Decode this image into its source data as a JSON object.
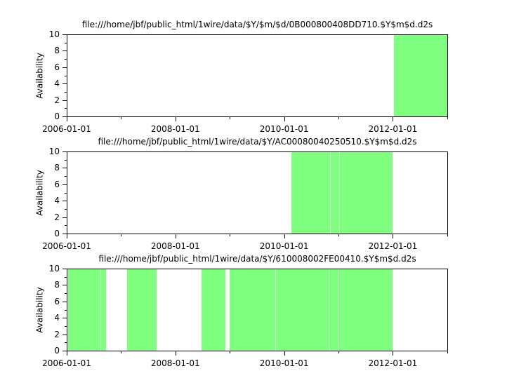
{
  "page": {
    "background": "#ffffff",
    "text_color": "#000000"
  },
  "colors": {
    "fill": "#80ff80",
    "pale_streak": "#d6ffd6",
    "axis": "#000000"
  },
  "chart_data": [
    {
      "type": "area",
      "title": "file:///home/jbf/public_html/1wire/data/$Y/$m/$d/0B000800408DD710.$Y$m$d.d2s",
      "xlabel": "",
      "ylabel": "Availability",
      "ylim": [
        0,
        10
      ],
      "x_range": [
        "2006-01-01",
        "2013-01-01"
      ],
      "y_ticks": [
        0,
        2,
        4,
        6,
        8,
        10
      ],
      "y_minor_ticks": [
        1,
        3,
        5,
        7,
        9
      ],
      "x_major_ticks": [
        "2006-01-01",
        "2008-01-01",
        "2010-01-01",
        "2012-01-01"
      ],
      "x_tick_labels": [
        "2006-01-01",
        "2008-01-01",
        "2010-01-01",
        "2012-01-01"
      ],
      "x_minor_ticks": [
        "2007-01-01",
        "2009-01-01",
        "2011-01-01",
        "2013-01-01"
      ],
      "grid": false,
      "legend": "none",
      "series": [
        {
          "name": "availability",
          "value_when_present": 10,
          "intervals": [
            {
              "start": "2012-01-08",
              "end": "2013-01-01"
            }
          ]
        }
      ],
      "pale_streaks": []
    },
    {
      "type": "area",
      "title": "file:///home/jbf/public_html/1wire/data/$Y/AC00080040250510.$Y$m$d.d2s",
      "xlabel": "",
      "ylabel": "Availability",
      "ylim": [
        0,
        10
      ],
      "x_range": [
        "2006-01-01",
        "2013-01-01"
      ],
      "y_ticks": [
        0,
        2,
        4,
        6,
        8,
        10
      ],
      "y_minor_ticks": [
        1,
        3,
        5,
        7,
        9
      ],
      "x_major_ticks": [
        "2006-01-01",
        "2008-01-01",
        "2010-01-01",
        "2012-01-01"
      ],
      "x_tick_labels": [
        "2006-01-01",
        "2008-01-01",
        "2010-01-01",
        "2012-01-01"
      ],
      "x_minor_ticks": [
        "2007-01-01",
        "2009-01-01",
        "2011-01-01",
        "2013-01-01"
      ],
      "grid": false,
      "legend": "none",
      "series": [
        {
          "name": "availability",
          "value_when_present": 10,
          "intervals": [
            {
              "start": "2010-02-15",
              "end": "2011-12-31"
            }
          ]
        }
      ],
      "pale_streaks": [
        "2010-11-05",
        "2011-01-06"
      ]
    },
    {
      "type": "area",
      "title": "file:///home/jbf/public_html/1wire/data/$Y/610008002FE00410.$Y$m$d.d2s",
      "xlabel": "",
      "ylabel": "Availability",
      "ylim": [
        0,
        10
      ],
      "x_range": [
        "2006-01-01",
        "2013-01-01"
      ],
      "y_ticks": [
        0,
        2,
        4,
        6,
        8,
        10
      ],
      "y_minor_ticks": [
        1,
        3,
        5,
        7,
        9
      ],
      "x_major_ticks": [
        "2006-01-01",
        "2008-01-01",
        "2010-01-01",
        "2012-01-01"
      ],
      "x_tick_labels": [
        "2006-01-01",
        "2008-01-01",
        "2010-01-01",
        "2012-01-01"
      ],
      "x_minor_ticks": [
        "2007-01-01",
        "2009-01-01",
        "2011-01-01",
        "2013-01-01"
      ],
      "grid": false,
      "legend": "none",
      "series": [
        {
          "name": "availability",
          "value_when_present": 10,
          "intervals": [
            {
              "start": "2006-01-05",
              "end": "2006-09-16"
            },
            {
              "start": "2007-02-09",
              "end": "2007-08-26"
            },
            {
              "start": "2008-06-22",
              "end": "2008-11-30"
            },
            {
              "start": "2008-12-28",
              "end": "2011-12-31"
            }
          ]
        }
      ],
      "pale_streaks": [
        "2006-08-13",
        "2009-10-30",
        "2010-11-01",
        "2011-01-01"
      ]
    }
  ]
}
